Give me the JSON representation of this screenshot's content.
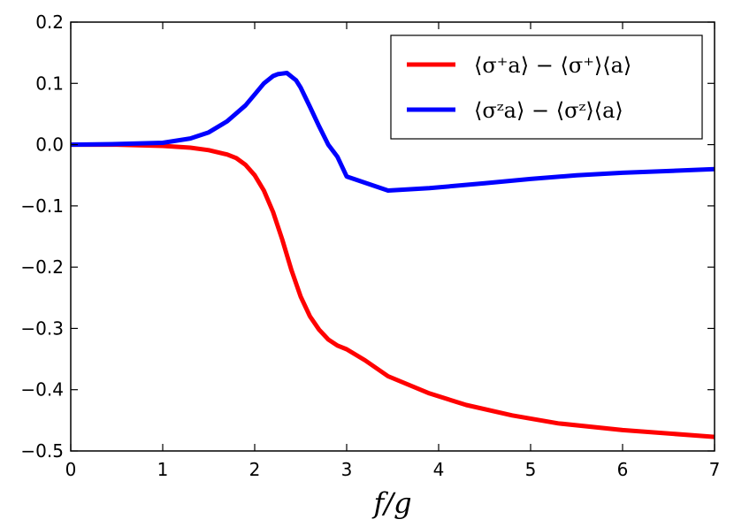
{
  "chart_data": {
    "type": "line",
    "title": "",
    "xlabel": "f/g",
    "ylabel": "",
    "xlim": [
      0,
      7
    ],
    "ylim": [
      -0.5,
      0.2
    ],
    "xticks": [
      0,
      1,
      2,
      3,
      4,
      5,
      6,
      7
    ],
    "xtick_labels": [
      "0",
      "1",
      "2",
      "3",
      "4",
      "5",
      "6",
      "7"
    ],
    "yticks": [
      0.2,
      0.1,
      0.0,
      -0.1,
      -0.2,
      -0.3,
      -0.4,
      -0.5
    ],
    "ytick_labels": [
      "0.2",
      "0.1",
      "0.0",
      "−0.1",
      "−0.2",
      "−0.3",
      "−0.4",
      "−0.5"
    ],
    "grid": false,
    "legend_position": "top-right",
    "series": [
      {
        "name": "⟨σ⁺a⟩ − ⟨σ⁺⟩⟨a⟩",
        "color": "#ff0000",
        "x": [
          0,
          0.5,
          1.0,
          1.3,
          1.5,
          1.7,
          1.8,
          1.9,
          2.0,
          2.1,
          2.2,
          2.3,
          2.4,
          2.5,
          2.6,
          2.7,
          2.8,
          2.9,
          3.0,
          3.2,
          3.45,
          3.9,
          4.3,
          4.8,
          5.3,
          6.0,
          7.0
        ],
        "y": [
          0.0,
          0.0,
          -0.002,
          -0.005,
          -0.009,
          -0.016,
          -0.022,
          -0.033,
          -0.05,
          -0.075,
          -0.11,
          -0.155,
          -0.205,
          -0.248,
          -0.28,
          -0.302,
          -0.318,
          -0.328,
          -0.334,
          -0.352,
          -0.378,
          -0.406,
          -0.425,
          -0.442,
          -0.455,
          -0.466,
          -0.477
        ]
      },
      {
        "name": "⟨σᶻa⟩ − ⟨σᶻ⟩⟨a⟩",
        "color": "#0000ff",
        "x": [
          0,
          0.5,
          1.0,
          1.3,
          1.5,
          1.7,
          1.9,
          2.0,
          2.1,
          2.2,
          2.25,
          2.3,
          2.35,
          2.4,
          2.45,
          2.5,
          2.6,
          2.7,
          2.8,
          2.9,
          3.0,
          3.45,
          3.9,
          4.5,
          5.0,
          5.5,
          6.0,
          7.0
        ],
        "y": [
          0.0,
          0.001,
          0.003,
          0.01,
          0.02,
          0.038,
          0.064,
          0.082,
          0.1,
          0.112,
          0.115,
          0.116,
          0.117,
          0.111,
          0.105,
          0.093,
          0.062,
          0.03,
          0.0,
          -0.02,
          -0.052,
          -0.075,
          -0.071,
          -0.063,
          -0.056,
          -0.05,
          -0.046,
          -0.04
        ]
      }
    ]
  }
}
